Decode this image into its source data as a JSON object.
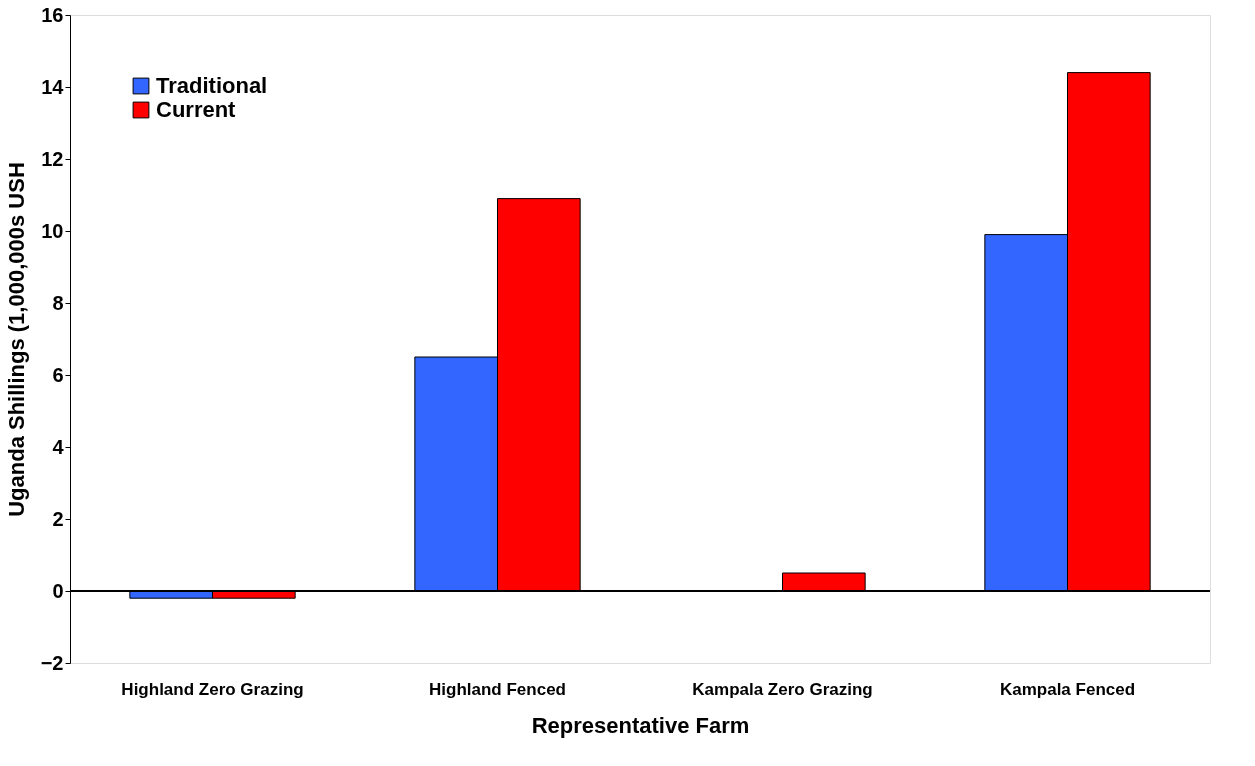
{
  "chart_data": {
    "type": "bar",
    "xlabel": "Representative Farm",
    "ylabel": "Uganda Shillings (1,000,000s USH",
    "categories": [
      "Highland Zero Grazing",
      "Highland Fenced",
      "Kampala Zero Grazing",
      "Kampala Fenced"
    ],
    "series": [
      {
        "name": "Traditional",
        "color": "#3366ff",
        "values": [
          -0.2,
          6.5,
          null,
          9.9
        ]
      },
      {
        "name": "Current",
        "color": "#ff0000",
        "values": [
          -0.2,
          10.9,
          0.5,
          14.4
        ]
      }
    ],
    "ylim": [
      -2,
      16
    ],
    "yticks": [
      -2,
      0,
      2,
      4,
      6,
      8,
      10,
      12,
      14,
      16
    ],
    "ref_lines": [
      {
        "axis": "y",
        "value": 0,
        "color": "#000000"
      }
    ],
    "grid": false,
    "legend": "top left"
  }
}
